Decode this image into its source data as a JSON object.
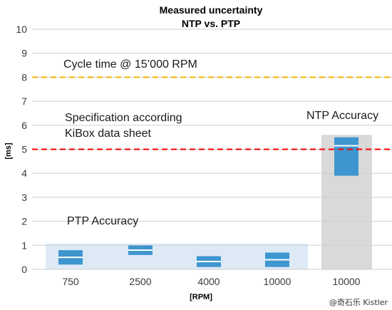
{
  "chart_data": {
    "type": "bar",
    "title": "Measured uncertainty",
    "subtitle": "NTP vs. PTP",
    "xlabel": "[RPM]",
    "ylabel": "[ms]",
    "ylim": [
      0,
      10
    ],
    "yticks": [
      0,
      1,
      2,
      3,
      4,
      5,
      6,
      7,
      8,
      9,
      10
    ],
    "grid": true,
    "categories": [
      "750",
      "2500",
      "4000",
      "10000",
      "10000"
    ],
    "groups": [
      {
        "label": "PTP Accuracy",
        "categories": [
          "750",
          "2500",
          "4000",
          "10000"
        ]
      },
      {
        "label": "NTP Accuracy",
        "categories": [
          "10000"
        ]
      }
    ],
    "series": [
      {
        "values": [
          [
            0.2,
            0.8
          ],
          [
            0.6,
            1.0
          ],
          [
            0.1,
            0.55
          ],
          [
            0.1,
            0.7
          ],
          [
            3.9,
            5.5
          ]
        ]
      }
    ],
    "reference_lines": [
      {
        "value": 8.0,
        "label": "Cycle time @ 15’000 RPM",
        "color": "#f5b400"
      },
      {
        "value": 5.0,
        "label": "Specification according KiBox data sheet",
        "color": "#ff0000"
      }
    ],
    "annotation_lines": {
      "cycle": [
        "Cycle time @ 15’000 RPM"
      ],
      "spec": [
        "Specification according",
        "KiBox data sheet"
      ]
    },
    "colors": {
      "bar": "#3e96cf",
      "ptp_region": "#ddeaf6",
      "ntp_region": "#d9d9d9",
      "grid": "#cfcfcf"
    }
  },
  "watermark": "@奇石乐 Kistler"
}
